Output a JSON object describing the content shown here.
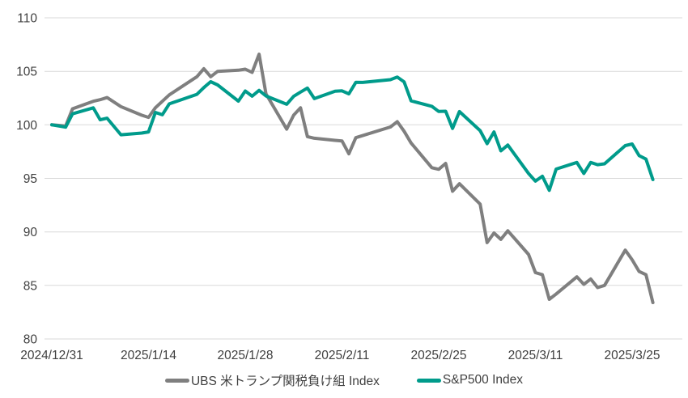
{
  "chart_data": {
    "type": "line",
    "grid": "horizontal",
    "legend_position": "bottom",
    "grid_color": "#D9D9D9",
    "text_color": "#404040",
    "background_color": "#FFFFFF",
    "y_axis": {
      "min": 80,
      "max": 110,
      "step": 5,
      "tick_labels": [
        "80",
        "85",
        "90",
        "95",
        "100",
        "105",
        "110"
      ]
    },
    "x_axis": {
      "tick_labels": [
        "2024/12/31",
        "2025/1/14",
        "2025/1/28",
        "2025/2/11",
        "2025/2/25",
        "2025/3/11",
        "2025/3/25"
      ]
    },
    "x_dates": [
      "2024/12/31",
      "2025/1/2",
      "2025/1/3",
      "2025/1/6",
      "2025/1/7",
      "2025/1/8",
      "2025/1/10",
      "2025/1/13",
      "2025/1/14",
      "2025/1/15",
      "2025/1/16",
      "2025/1/17",
      "2025/1/21",
      "2025/1/22",
      "2025/1/23",
      "2025/1/24",
      "2025/1/27",
      "2025/1/28",
      "2025/1/29",
      "2025/1/30",
      "2025/1/31",
      "2025/2/3",
      "2025/2/4",
      "2025/2/5",
      "2025/2/6",
      "2025/2/7",
      "2025/2/10",
      "2025/2/11",
      "2025/2/12",
      "2025/2/13",
      "2025/2/14",
      "2025/2/18",
      "2025/2/19",
      "2025/2/20",
      "2025/2/21",
      "2025/2/24",
      "2025/2/25",
      "2025/2/26",
      "2025/2/27",
      "2025/2/28",
      "2025/3/3",
      "2025/3/4",
      "2025/3/5",
      "2025/3/6",
      "2025/3/7",
      "2025/3/10",
      "2025/3/11",
      "2025/3/12",
      "2025/3/13",
      "2025/3/14",
      "2025/3/17",
      "2025/3/18",
      "2025/3/19",
      "2025/3/20",
      "2025/3/21",
      "2025/3/24",
      "2025/3/25",
      "2025/3/26",
      "2025/3/27",
      "2025/3/28"
    ],
    "series": [
      {
        "id": "ubs",
        "name": "UBS 米トランプ関税負け組 Index",
        "color": "#7F7F7F",
        "values": [
          100.0,
          99.9,
          101.5,
          102.2,
          102.35,
          102.55,
          101.7,
          100.9,
          100.7,
          101.6,
          102.2,
          102.8,
          104.5,
          105.25,
          104.5,
          105.0,
          105.1,
          105.2,
          104.9,
          106.6,
          102.9,
          99.6,
          100.9,
          101.6,
          98.9,
          98.75,
          98.55,
          98.5,
          97.3,
          98.8,
          99.0,
          99.8,
          100.3,
          99.4,
          98.3,
          96.0,
          95.85,
          96.4,
          93.8,
          94.5,
          92.6,
          89.0,
          89.9,
          89.3,
          90.1,
          87.9,
          86.2,
          86.0,
          83.7,
          84.2,
          85.8,
          85.1,
          85.6,
          84.8,
          85.0,
          88.3,
          87.4,
          86.3,
          86.0,
          83.4
        ]
      },
      {
        "id": "sp500",
        "name": "S&P500 Index",
        "color": "#009B8B",
        "values": [
          100.0,
          99.78,
          101.03,
          101.59,
          100.47,
          100.62,
          99.07,
          99.23,
          99.34,
          101.16,
          100.95,
          101.96,
          102.85,
          103.48,
          104.03,
          103.73,
          102.22,
          103.16,
          102.68,
          103.22,
          102.7,
          101.92,
          102.66,
          103.06,
          103.43,
          102.45,
          103.14,
          103.18,
          102.9,
          103.97,
          103.96,
          104.22,
          104.46,
          104.01,
          102.24,
          101.73,
          101.25,
          101.27,
          99.66,
          101.24,
          99.46,
          98.24,
          99.34,
          97.57,
          98.11,
          95.46,
          94.74,
          95.2,
          93.88,
          95.87,
          96.49,
          95.46,
          96.49,
          96.28,
          96.36,
          98.06,
          98.21,
          97.12,
          96.8,
          94.89
        ]
      }
    ]
  },
  "legend": {
    "items": [
      {
        "label": "UBS 米トランプ関税負け組 Index"
      },
      {
        "label": "S&P500 Index"
      }
    ]
  }
}
